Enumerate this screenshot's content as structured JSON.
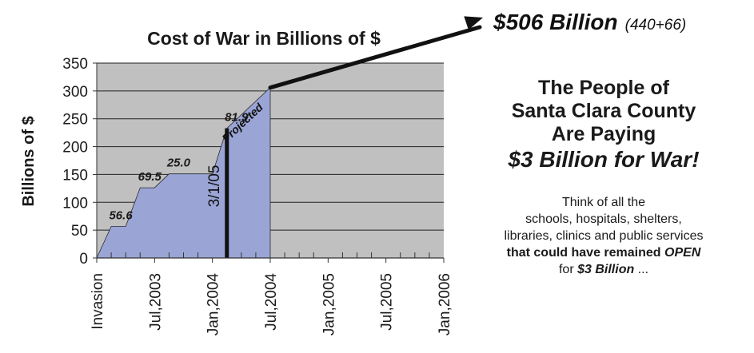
{
  "chart_data": {
    "type": "area",
    "title": "Cost of War in Billions of $",
    "ylabel": "Billions of $",
    "xlabel": "",
    "ylim": [
      0,
      350
    ],
    "yticks": [
      0,
      50,
      100,
      150,
      200,
      250,
      300,
      350
    ],
    "grid": true,
    "x_tick_labels": [
      "Invasion",
      "Jul,2003",
      "Jan,2004",
      "Jul,2004",
      "Jan,2005",
      "Jul,2005",
      "Jan,2006"
    ],
    "points": [
      {
        "x": 0.0,
        "y": 0
      },
      {
        "x": 0.25,
        "y": 56.6
      },
      {
        "x": 0.5,
        "y": 56.6
      },
      {
        "x": 0.75,
        "y": 126.1
      },
      {
        "x": 1.0,
        "y": 126.1
      },
      {
        "x": 1.25,
        "y": 151.1
      },
      {
        "x": 2.0,
        "y": 151.1
      },
      {
        "x": 2.25,
        "y": 233.0
      },
      {
        "x": 3.0,
        "y": 306
      }
    ],
    "increments": [
      {
        "label": "56.6",
        "at": 0.25,
        "value": 56.6
      },
      {
        "label": "69.5",
        "at": 0.75,
        "value": 126.1
      },
      {
        "label": "25.0",
        "at": 1.25,
        "value": 151.1
      },
      {
        "label": "81.9",
        "at": 2.25,
        "value": 233.0
      }
    ],
    "marker": {
      "label": "3/1/05",
      "at": 2.25
    },
    "projected_label": "Projected",
    "callout": {
      "amount": "$506 Billion",
      "detail": "(440+66)"
    },
    "colors": {
      "fill": "#9aa5d6",
      "plot_bg": "#c0c0c0",
      "line": "#111111"
    }
  },
  "side": {
    "head_lines": [
      "The People of",
      "Santa Clara County",
      "Are Paying"
    ],
    "head_em": "$3 Billion for War!",
    "line1": "Think of all the",
    "line2": "schools, hospitals, shelters,",
    "line3": "libraries, clinics and public services",
    "open_pre": "that could have remained ",
    "open_word": "OPEN",
    "for_word": "for ",
    "for_amount": "$3 Billion",
    "ellipsis": " ..."
  }
}
